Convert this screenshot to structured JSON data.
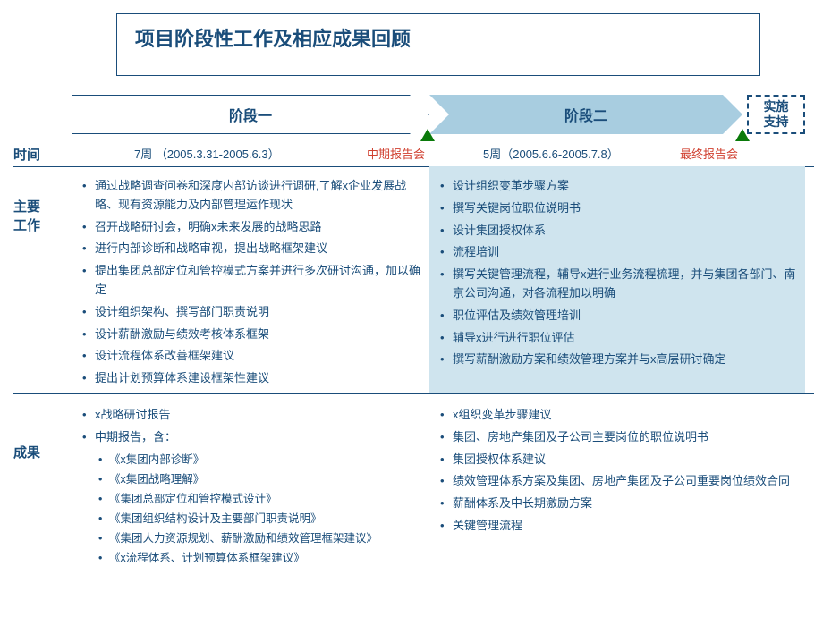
{
  "title": "项目阶段性工作及相应成果回顾",
  "phases": {
    "p1": "阶段一",
    "p2": "阶段二",
    "p3": "实施\n支持"
  },
  "row_labels": {
    "time": "时间",
    "work": "主要\n工作",
    "result": "成果"
  },
  "time_row": {
    "t1": "7周 （2005.3.31-2005.6.3）",
    "m1": "中期报告会",
    "t2": "5周（2005.6.6-2005.7.8）",
    "m2": "最终报告会"
  },
  "work": {
    "phase1": [
      "通过战略调查问卷和深度内部访谈进行调研,了解x企业发展战略、现有资源能力及内部管理运作现状",
      "召开战略研讨会，明确x未来发展的战略思路",
      "进行内部诊断和战略审视，提出战略框架建议",
      "提出集团总部定位和管控模式方案并进行多次研讨沟通，加以确定",
      "设计组织架构、撰写部门职责说明",
      "设计薪酬激励与绩效考核体系框架",
      "设计流程体系改善框架建议",
      "提出计划预算体系建设框架性建议"
    ],
    "phase2": [
      "设计组织变革步骤方案",
      "撰写关键岗位职位说明书",
      "设计集团授权体系",
      "流程培训",
      "撰写关键管理流程，辅导x进行业务流程梳理，并与集团各部门、南京公司沟通，对各流程加以明确",
      "职位评估及绩效管理培训",
      "辅导x进行进行职位评估",
      "撰写薪酬激励方案和绩效管理方案并与x高层研讨确定"
    ]
  },
  "result": {
    "phase1_top": [
      "x战略研讨报告",
      "中期报告，含："
    ],
    "phase1_sub": [
      "《x集团内部诊断》",
      "《x集团战略理解》",
      "《集团总部定位和管控模式设计》",
      "《集团组织结构设计及主要部门职责说明》",
      "《集团人力资源规划、薪酬激励和绩效管理框架建议》",
      "《x流程体系、计划预算体系框架建议》"
    ],
    "phase2": [
      "x组织变革步骤建议",
      "集团、房地产集团及子公司主要岗位的职位说明书",
      "集团授权体系建议",
      "绩效管理体系方案及集团、房地产集团及子公司重要岗位绩效合同",
      "薪酬体系及中长期激励方案",
      "关键管理流程"
    ]
  },
  "colors": {
    "primary": "#1a4d7a",
    "shade": "#a8cde0",
    "shade_light": "#cfe4ee",
    "marker": "#0a7a0a",
    "red": "#d04030"
  }
}
